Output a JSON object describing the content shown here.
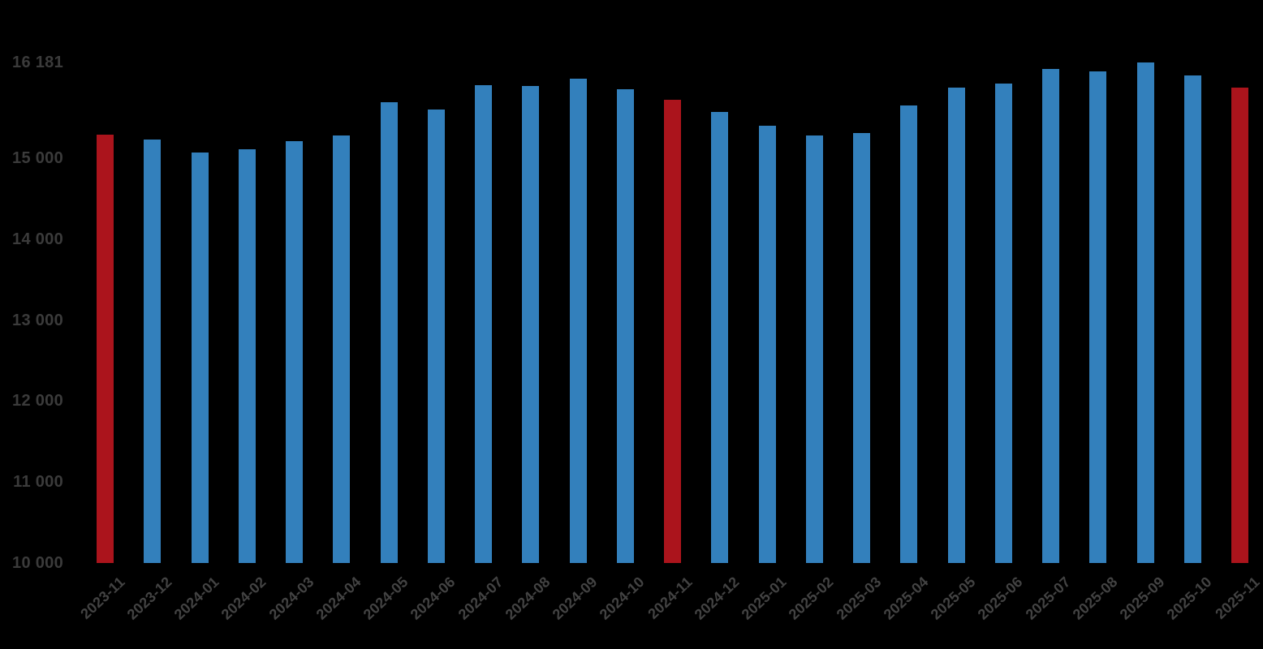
{
  "chart_data": {
    "type": "bar",
    "title": "",
    "xlabel": "",
    "ylabel": "",
    "grid": false,
    "legend": false,
    "ylim": [
      10000,
      16181
    ],
    "categories": [
      "2023-11",
      "2023-12",
      "2024-01",
      "2024-02",
      "2024-03",
      "2024-04",
      "2024-05",
      "2024-06",
      "2024-07",
      "2024-08",
      "2024-09",
      "2024-10",
      "2024-11",
      "2024-12",
      "2025-01",
      "2025-02",
      "2025-03",
      "2025-04",
      "2025-05",
      "2025-06",
      "2025-07",
      "2025-08",
      "2025-09",
      "2025-10",
      "2025-11"
    ],
    "values": [
      15290,
      15230,
      15070,
      15110,
      15210,
      15280,
      15690,
      15600,
      15900,
      15890,
      15980,
      15850,
      15720,
      15570,
      15400,
      15280,
      15310,
      15650,
      15870,
      15920,
      16100,
      16070,
      16181,
      16020,
      15870
    ],
    "highlighted_categories": [
      "2023-11",
      "2024-11",
      "2025-11"
    ],
    "y_ticks": [
      {
        "value": 16181,
        "label": "16 181"
      },
      {
        "value": 15000,
        "label": "15 000"
      },
      {
        "value": 14000,
        "label": "14 000"
      },
      {
        "value": 13000,
        "label": "13 000"
      },
      {
        "value": 12000,
        "label": "12 000"
      },
      {
        "value": 11000,
        "label": "11 000"
      },
      {
        "value": 10000,
        "label": "10 000"
      }
    ],
    "colors": {
      "bar": "#3380BC",
      "highlight": "#AB141C",
      "y_label_text": "#3b3b3b",
      "x_label_text": "#434343",
      "background": "#000000"
    }
  }
}
